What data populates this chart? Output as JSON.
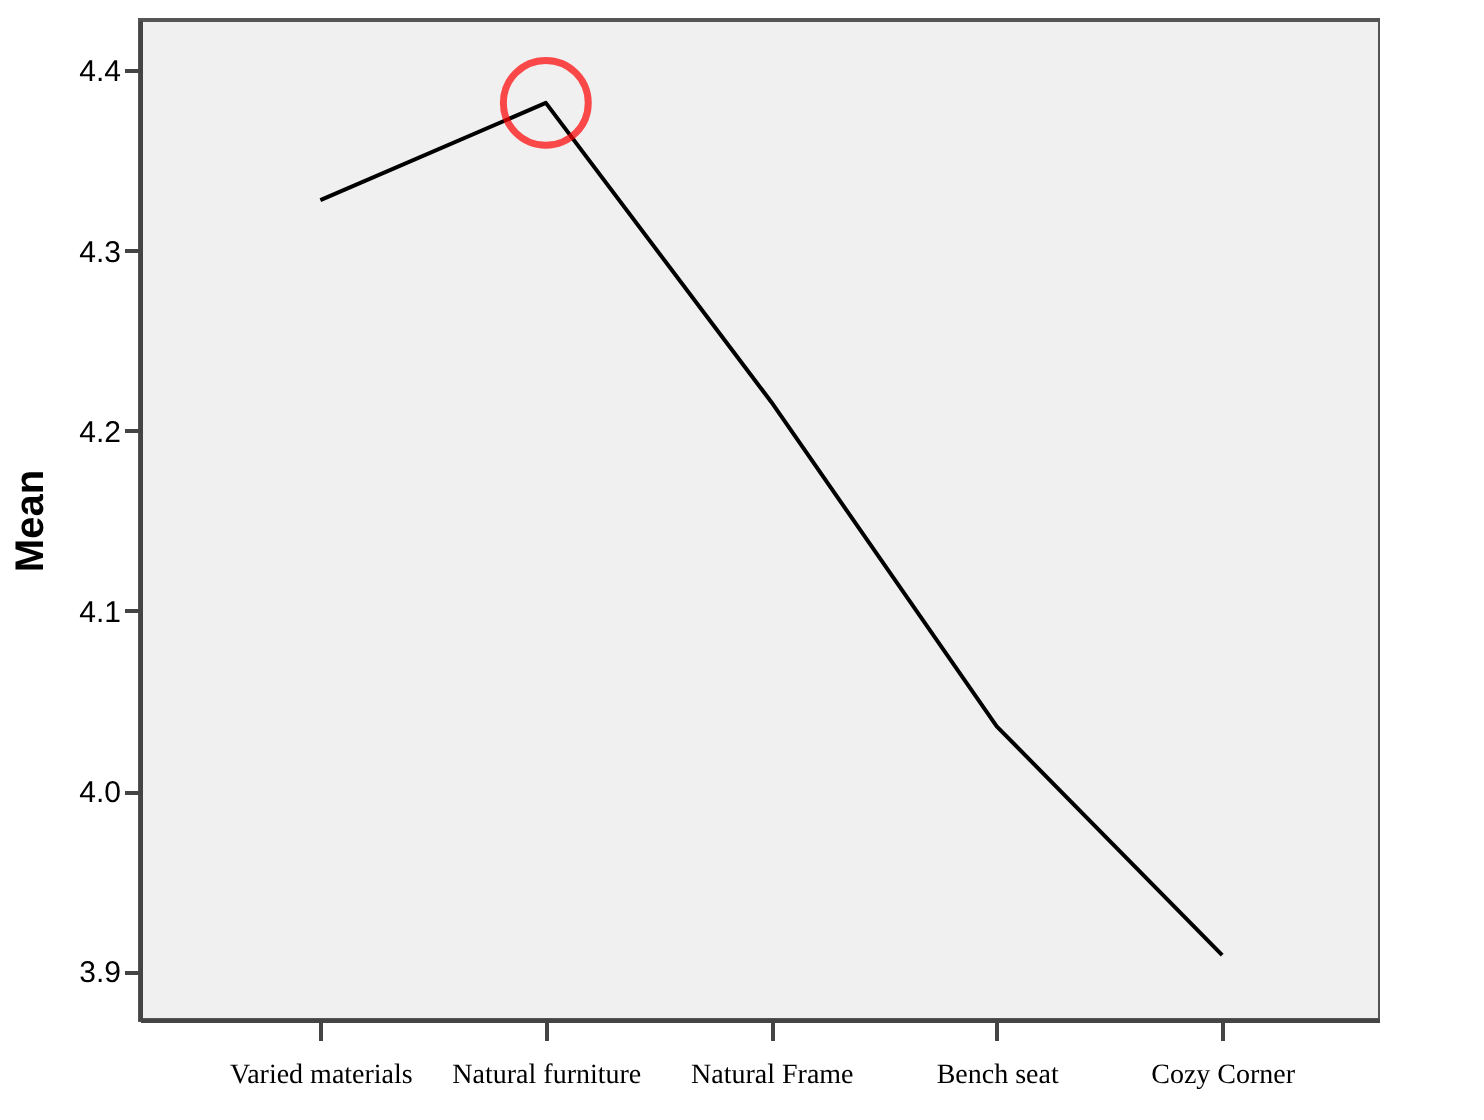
{
  "chart_data": {
    "type": "line",
    "ylabel": "Mean",
    "categories": [
      "Varied materials",
      "Natural furniture",
      "Natural Frame",
      "Bench seat",
      "Cozy Corner"
    ],
    "series": [
      {
        "color": "#000000",
        "values": [
          4.328,
          4.382,
          4.216,
          4.036,
          3.909
        ]
      },
      {
        "type": "scatter",
        "color": "#ff0000",
        "marker": "circle",
        "values": [
          null,
          4.382,
          null,
          null,
          null
        ]
      }
    ],
    "ylim": [
      3.873,
      4.428
    ],
    "yticks": [
      3.9,
      {
        "value": 4.0,
        "label": "4.0"
      },
      4.1,
      4.2,
      4.3,
      4.4
    ],
    "grid": false,
    "marker": "none",
    "line_style": "solid"
  }
}
